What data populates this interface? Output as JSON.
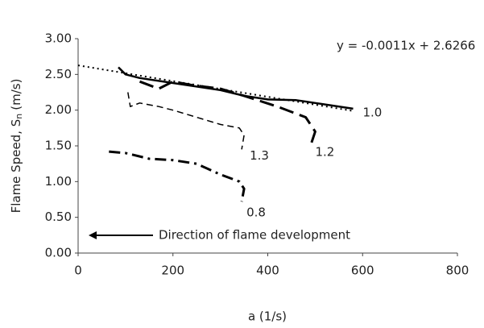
{
  "chart_data": {
    "type": "line",
    "ylabel": {
      "main": "Flame Speed, S",
      "sub": "n",
      "unit": "(m/s)"
    },
    "xlabel": "a (1/s)",
    "xlim": [
      0,
      800
    ],
    "xticks": [
      0,
      200,
      400,
      600,
      800
    ],
    "ylim": [
      0,
      3
    ],
    "yticks": [
      {
        "value": 0,
        "label": "0.00"
      },
      {
        "value": 0.5,
        "label": "0.50"
      },
      {
        "value": 1,
        "label": "1.00"
      },
      {
        "value": 1.5,
        "label": "1.50"
      },
      {
        "value": 2,
        "label": "2.00"
      },
      {
        "value": 2.5,
        "label": "2.50"
      },
      {
        "value": 3,
        "label": "3.00"
      }
    ],
    "grid": false,
    "series": [
      {
        "name": "1.0",
        "color": "#000000",
        "dash": "none",
        "width": 2.5,
        "x": [
          85,
          100,
          130,
          200,
          260,
          300,
          350,
          400,
          460,
          500,
          580
        ],
        "values": [
          2.6,
          2.5,
          2.45,
          2.38,
          2.32,
          2.28,
          2.2,
          2.15,
          2.14,
          2.1,
          2.02
        ]
      },
      {
        "name": "1.2",
        "color": "#000000",
        "dash": "18,8",
        "width": 3,
        "x": [
          130,
          170,
          200,
          240,
          300,
          350,
          420,
          480,
          500,
          490
        ],
        "values": [
          2.4,
          2.3,
          2.4,
          2.35,
          2.3,
          2.2,
          2.05,
          1.9,
          1.7,
          1.5
        ]
      },
      {
        "name": "1.3",
        "color": "#000000",
        "dash": "8,5",
        "width": 1.5,
        "x": [
          105,
          110,
          130,
          170,
          200,
          250,
          300,
          340,
          350,
          345
        ],
        "values": [
          2.25,
          2.05,
          2.1,
          2.05,
          2.0,
          1.9,
          1.8,
          1.75,
          1.65,
          1.45
        ]
      },
      {
        "name": "0.8",
        "color": "#000000",
        "dash": "14,6,3,6",
        "width": 3,
        "x": [
          65,
          100,
          150,
          200,
          250,
          300,
          340,
          350,
          345
        ],
        "values": [
          1.42,
          1.4,
          1.32,
          1.3,
          1.25,
          1.1,
          1.0,
          0.9,
          0.72
        ]
      }
    ],
    "trendline": {
      "x": [
        0,
        580
      ],
      "values": [
        2.6266,
        1.9886
      ],
      "equation": "y = -0.0011x + 2.6266"
    },
    "annotation": "Direction of flame development"
  }
}
